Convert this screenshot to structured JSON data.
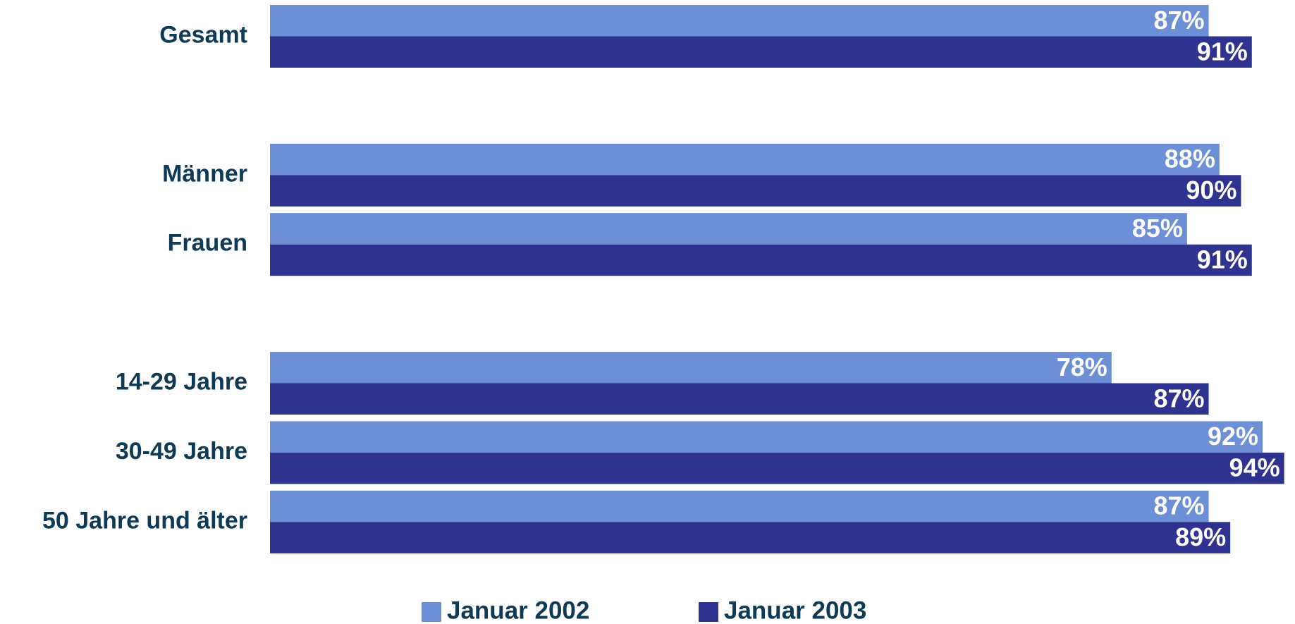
{
  "chart_data": {
    "type": "hbar",
    "categories": [
      "Gesamt",
      null,
      "Männer",
      "Frauen",
      null,
      "14-29 Jahre",
      "30-49 Jahre",
      "50 Jahre und älter"
    ],
    "series": [
      {
        "name": "Januar 2002",
        "color": "#6d8fd6",
        "values": [
          87,
          null,
          88,
          85,
          null,
          78,
          92,
          87
        ],
        "value_labels": [
          "87%",
          null,
          "88%",
          "85%",
          null,
          "78%",
          "92%",
          "87%"
        ]
      },
      {
        "name": "Januar 2003",
        "color": "#2e338f",
        "values": [
          91,
          null,
          90,
          91,
          null,
          87,
          94,
          89
        ],
        "value_labels": [
          "91%",
          null,
          "90%",
          "91%",
          null,
          "87%",
          "94%",
          "89%"
        ]
      }
    ],
    "xlim": [
      0,
      95
    ],
    "legend": "bottom"
  }
}
